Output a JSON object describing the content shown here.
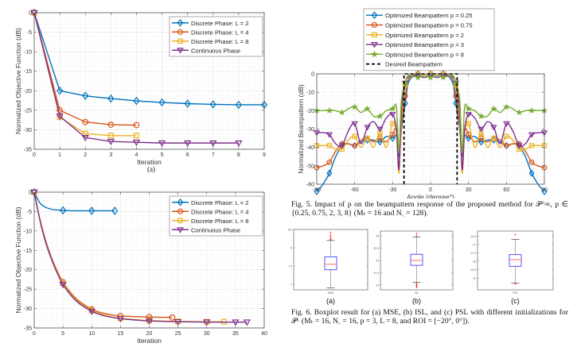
{
  "colors": {
    "blue": "#0072BD",
    "orange": "#D95319",
    "yellow": "#EDB120",
    "purple": "#7E2F8E",
    "green": "#77AC30",
    "black": "#000000",
    "box_blue": "#5555ff",
    "median_red": "#ff8080",
    "outlier_red": "#ff2020"
  },
  "chart_data": [
    {
      "id": "fig-a",
      "type": "line",
      "sublabel": "(a)",
      "title": "",
      "xlabel": "Iteration",
      "ylabel": "Normalized Objective Function (dB)",
      "xlim": [
        0,
        9
      ],
      "ylim": [
        -35,
        0
      ],
      "xticks": [
        0,
        1,
        2,
        3,
        4,
        5,
        6,
        7,
        8,
        9
      ],
      "yticks": [
        0,
        -5,
        -10,
        -15,
        -20,
        -25,
        -30,
        -35
      ],
      "grid": true,
      "legend_position": "top-right",
      "series": [
        {
          "name": "Discrete Phase: L = 2",
          "color_key": "blue",
          "marker": "diamond",
          "x": [
            0,
            1,
            2,
            3,
            4,
            5,
            6,
            7,
            8,
            9
          ],
          "y": [
            0,
            -20,
            -21.3,
            -22,
            -22.6,
            -23,
            -23.3,
            -23.5,
            -23.6,
            -23.6
          ],
          "marker_x": [
            0,
            1,
            2,
            3,
            4,
            5,
            6,
            7,
            8,
            9
          ]
        },
        {
          "name": "Discrete Phase: L = 4",
          "color_key": "orange",
          "marker": "circle",
          "x": [
            0,
            1,
            2,
            3,
            4
          ],
          "y": [
            0,
            -25,
            -28,
            -28.7,
            -28.8
          ],
          "marker_x": [
            0,
            1,
            2,
            3,
            4
          ]
        },
        {
          "name": "Discrete Phase: L = 8",
          "color_key": "yellow",
          "marker": "square",
          "x": [
            0,
            1,
            2,
            3,
            4
          ],
          "y": [
            0,
            -26.8,
            -31,
            -31.5,
            -31.5
          ],
          "marker_x": [
            0,
            1,
            2,
            3,
            4
          ]
        },
        {
          "name": "Continuous Phase",
          "color_key": "purple",
          "marker": "triangle-down",
          "x": [
            0,
            1,
            2,
            3,
            4,
            5,
            6,
            7,
            8
          ],
          "y": [
            0,
            -26.5,
            -32,
            -33,
            -33.2,
            -33.4,
            -33.4,
            -33.4,
            -33.4
          ],
          "marker_x": [
            0,
            1,
            2,
            3,
            4,
            5,
            6,
            7,
            8
          ]
        }
      ]
    },
    {
      "id": "fig-b",
      "type": "line",
      "sublabel": "",
      "title": "",
      "xlabel": "Iteration",
      "ylabel": "Normalized Objective Function (dB)",
      "xlim": [
        0,
        40
      ],
      "ylim": [
        -35,
        0
      ],
      "xticks": [
        0,
        5,
        10,
        15,
        20,
        25,
        30,
        35,
        40
      ],
      "yticks": [
        0,
        -5,
        -10,
        -15,
        -20,
        -25,
        -30,
        -35
      ],
      "grid": true,
      "legend_position": "top-right",
      "series": [
        {
          "name": "Discrete Phase: L = 2",
          "color_key": "blue",
          "marker": "diamond",
          "x": [
            0,
            1,
            2,
            3,
            4,
            5,
            7,
            10,
            14
          ],
          "y": [
            0,
            -2.8,
            -3.9,
            -4.4,
            -4.6,
            -4.7,
            -4.8,
            -4.8,
            -4.8
          ],
          "marker_x": [
            0,
            5,
            10,
            14
          ]
        },
        {
          "name": "Discrete Phase: L = 4",
          "color_key": "orange",
          "marker": "circle",
          "x": [
            0,
            1,
            2,
            3,
            4,
            5,
            6,
            7,
            8,
            10,
            12,
            15,
            18,
            20,
            24
          ],
          "y": [
            0,
            -7,
            -12.5,
            -16.8,
            -20.3,
            -23.2,
            -25.3,
            -27,
            -28.3,
            -30.2,
            -31.2,
            -31.9,
            -32.1,
            -32.2,
            -32.3
          ],
          "marker_x": [
            0,
            5,
            10,
            15,
            20,
            24
          ]
        },
        {
          "name": "Discrete Phase: L = 8",
          "color_key": "yellow",
          "marker": "square",
          "x": [
            0,
            1,
            2,
            3,
            4,
            5,
            6,
            7,
            8,
            10,
            12,
            15,
            18,
            20,
            25,
            30,
            33
          ],
          "y": [
            0,
            -7.2,
            -12.8,
            -17.1,
            -20.6,
            -23.5,
            -25.6,
            -27.3,
            -28.6,
            -30.5,
            -31.6,
            -32.5,
            -32.9,
            -33.1,
            -33.3,
            -33.4,
            -33.4
          ],
          "marker_x": [
            0,
            5,
            10,
            15,
            20,
            25,
            30,
            33
          ]
        },
        {
          "name": "Continuous Phase",
          "color_key": "purple",
          "marker": "triangle-down",
          "x": [
            0,
            1,
            2,
            3,
            4,
            5,
            6,
            7,
            8,
            10,
            12,
            15,
            18,
            20,
            25,
            30,
            35,
            37
          ],
          "y": [
            0,
            -7.3,
            -13,
            -17.3,
            -20.9,
            -23.8,
            -25.9,
            -27.6,
            -28.9,
            -30.7,
            -31.8,
            -32.6,
            -33,
            -33.2,
            -33.4,
            -33.5,
            -33.5,
            -33.5
          ],
          "marker_x": [
            0,
            5,
            10,
            15,
            20,
            25,
            30,
            35,
            37
          ]
        }
      ]
    },
    {
      "id": "fig5",
      "type": "line",
      "title": "",
      "xlabel": "Angle (degree°)",
      "ylabel": "Normalized Beampattern (dB)",
      "xlim": [
        -90,
        90
      ],
      "ylim": [
        -60,
        0
      ],
      "xticks": [
        -90,
        -60,
        -30,
        0,
        30,
        60,
        90
      ],
      "yticks": [
        0,
        -10,
        -20,
        -30,
        -40,
        -50,
        -60
      ],
      "grid": true,
      "legend_position": "top (outside)",
      "series": [
        {
          "name": "Optimized Beampattern p = 0.25",
          "color_key": "blue",
          "marker": "diamond",
          "x": [
            -90,
            -85,
            -80,
            -75,
            -70,
            -65,
            -60,
            -55,
            -50,
            -45,
            -40,
            -35,
            -30,
            -27,
            -25,
            -23,
            -20,
            -18,
            -15,
            -10,
            -5,
            0,
            5,
            10,
            15,
            18,
            20,
            23,
            25,
            27,
            30,
            35,
            40,
            45,
            50,
            55,
            60,
            65,
            70,
            75,
            80,
            85,
            90
          ],
          "y": [
            -64,
            -60,
            -54,
            -45,
            -39,
            -38,
            -39,
            -37,
            -36,
            -36,
            -37,
            -34,
            -35,
            -34,
            -45,
            -30,
            -16,
            -6,
            -2,
            0,
            -1,
            0,
            -1,
            0,
            -2,
            -6,
            -16,
            -30,
            -45,
            -34,
            -35,
            -34,
            -37,
            -36,
            -36,
            -37,
            -39,
            -38,
            -39,
            -45,
            -54,
            -60,
            -64
          ],
          "marker_x": [
            -90,
            -80,
            -70,
            -60,
            -50,
            -40,
            -30,
            -20,
            -10,
            0,
            10,
            20,
            30,
            40,
            50,
            60,
            70,
            80,
            90
          ]
        },
        {
          "name": "Optimized Beampattern p = 0.75",
          "color_key": "orange",
          "marker": "circle",
          "x": [
            -90,
            -85,
            -80,
            -75,
            -70,
            -65,
            -60,
            -55,
            -50,
            -45,
            -40,
            -35,
            -30,
            -27,
            -25,
            -23,
            -20,
            -18,
            -15,
            -10,
            -5,
            0,
            5,
            10,
            15,
            18,
            20,
            23,
            25,
            27,
            30,
            35,
            40,
            45,
            50,
            55,
            60,
            65,
            70,
            75,
            80,
            85,
            90
          ],
          "y": [
            -51,
            -50,
            -48,
            -42,
            -38,
            -38,
            -39,
            -36,
            -35,
            -37,
            -35,
            -37,
            -33,
            -30,
            -50,
            -28,
            -12,
            -4,
            -1,
            0,
            -1,
            0,
            -1,
            0,
            -1,
            -4,
            -12,
            -28,
            -50,
            -30,
            -33,
            -37,
            -35,
            -37,
            -35,
            -36,
            -39,
            -38,
            -38,
            -42,
            -48,
            -50,
            -51
          ],
          "marker_x": [
            -90,
            -80,
            -70,
            -60,
            -50,
            -40,
            -30,
            -20,
            -10,
            0,
            10,
            20,
            30,
            40,
            50,
            60,
            70,
            80,
            90
          ]
        },
        {
          "name": "Optimized Beampattern p = 2",
          "color_key": "yellow",
          "marker": "square",
          "x": [
            -90,
            -85,
            -80,
            -75,
            -70,
            -65,
            -60,
            -55,
            -50,
            -45,
            -40,
            -35,
            -30,
            -27,
            -25,
            -23,
            -20,
            -18,
            -15,
            -10,
            -5,
            0,
            5,
            10,
            15,
            18,
            20,
            23,
            25,
            27,
            30,
            35,
            40,
            45,
            50,
            55,
            60,
            65,
            70,
            75,
            80,
            85,
            90
          ],
          "y": [
            -39,
            -39,
            -39,
            -41,
            -41,
            -36,
            -34,
            -40,
            -35,
            -40,
            -32,
            -40,
            -27,
            -32,
            -54,
            -24,
            -6,
            -2,
            -1,
            0,
            -1,
            0,
            -1,
            0,
            -1,
            -2,
            -6,
            -24,
            -54,
            -32,
            -27,
            -40,
            -32,
            -40,
            -35,
            -40,
            -34,
            -36,
            -41,
            -41,
            -39,
            -39,
            -39
          ],
          "marker_x": [
            -90,
            -80,
            -70,
            -60,
            -50,
            -40,
            -30,
            -20,
            -10,
            0,
            10,
            20,
            30,
            40,
            50,
            60,
            70,
            80,
            90
          ]
        },
        {
          "name": "Optimized Beampattern p = 3",
          "color_key": "purple",
          "marker": "triangle-down",
          "x": [
            -90,
            -85,
            -80,
            -75,
            -70,
            -65,
            -60,
            -55,
            -50,
            -45,
            -40,
            -35,
            -30,
            -27,
            -25,
            -23,
            -20,
            -18,
            -15,
            -10,
            -5,
            0,
            5,
            10,
            15,
            18,
            20,
            23,
            25,
            27,
            30,
            35,
            40,
            45,
            50,
            55,
            60,
            65,
            70,
            75,
            80,
            85,
            90
          ],
          "y": [
            -32,
            -32,
            -33,
            -38,
            -39,
            -31,
            -27,
            -38,
            -29,
            -26,
            -30,
            -24,
            -22,
            -30,
            -52,
            -20,
            -5,
            -2,
            -1,
            -1,
            -2,
            -1,
            -2,
            -1,
            -1,
            -2,
            -5,
            -20,
            -52,
            -30,
            -22,
            -24,
            -30,
            -26,
            -29,
            -38,
            -27,
            -31,
            -39,
            -38,
            -33,
            -32,
            -32
          ],
          "marker_x": [
            -90,
            -80,
            -70,
            -60,
            -50,
            -40,
            -30,
            -20,
            -10,
            0,
            10,
            20,
            30,
            40,
            50,
            60,
            70,
            80,
            90
          ]
        },
        {
          "name": "Optimized Beampattern p = 8",
          "color_key": "green",
          "marker": "star",
          "x": [
            -90,
            -85,
            -80,
            -75,
            -70,
            -65,
            -60,
            -55,
            -50,
            -45,
            -40,
            -35,
            -30,
            -27,
            -25,
            -23,
            -20,
            -18,
            -15,
            -10,
            -5,
            0,
            5,
            10,
            15,
            18,
            20,
            23,
            25,
            27,
            30,
            35,
            40,
            45,
            50,
            55,
            60,
            65,
            70,
            75,
            80,
            85,
            90
          ],
          "y": [
            -20,
            -20,
            -20,
            -20,
            -21,
            -19,
            -18,
            -21,
            -19,
            -23,
            -23,
            -20,
            -19,
            -18,
            -42,
            -14,
            -5,
            -1,
            -1,
            -2,
            -1,
            -2,
            -1,
            -2,
            -1,
            -1,
            -5,
            -14,
            -42,
            -18,
            -19,
            -20,
            -23,
            -23,
            -19,
            -21,
            -18,
            -19,
            -21,
            -20,
            -20,
            -20,
            -20
          ],
          "marker_x": [
            -90,
            -80,
            -70,
            -60,
            -50,
            -40,
            -30,
            -20,
            -10,
            0,
            10,
            20,
            30,
            40,
            50,
            60,
            70,
            80,
            90
          ]
        },
        {
          "name": "Desired Beampattern",
          "color_key": "black",
          "marker": "none",
          "dashed": true,
          "x": [
            -21,
            -21,
            21,
            21
          ],
          "y": [
            -60,
            0,
            0,
            -60
          ],
          "marker_x": []
        }
      ]
    },
    {
      "id": "fig6",
      "type": "boxplot",
      "panels": [
        {
          "sublabel": "(a)",
          "xlabel": "MSE",
          "ylim": [
            6.85,
            8.5
          ],
          "yticks": [
            7,
            7.5,
            8,
            8.5
          ],
          "min": 6.9,
          "q1": 7.4,
          "median": 7.55,
          "q3": 7.75,
          "max": 8.2,
          "outliers": [
            8.22,
            8.25,
            8.3,
            8.35,
            8.42
          ]
        },
        {
          "sublabel": "(b)",
          "xlabel": "ISL",
          "ylim": [
            23.8,
            26.2
          ],
          "yticks": [
            24,
            24.5,
            25,
            25.5,
            26
          ],
          "min": 24.1,
          "q1": 24.8,
          "median": 25.0,
          "q3": 25.25,
          "max": 25.95,
          "outliers": [
            24.0,
            23.95,
            23.9,
            24.05,
            26.0,
            26.1
          ]
        },
        {
          "sublabel": "(c)",
          "xlabel": "PSL",
          "ylim": [
            -19.7,
            -16.2
          ],
          "yticks": [
            -16.5,
            -17,
            -17.5,
            -18,
            -18.5,
            -19
          ],
          "min": -19.3,
          "q1": -18.3,
          "median": -17.9,
          "q3": -17.6,
          "max": -16.7,
          "outliers": [
            -16.4,
            -19.35
          ]
        }
      ]
    }
  ],
  "captions": {
    "fig5": "Fig. 5.  Impact of p on the beampattern response of the proposed method for 𝒫^∞, p ∈ {0.25, 0.75, 2, 3, 8} (Mₜ = 16 and N꜀ = 128).",
    "fig6": "Fig. 6.  Boxplot result for (a) MSE, (b) ISL, and (c) PSL with different initializations for 𝒫ᴸ (Mₜ = 16, N꜀ = 16, p = 3, L = 8, and ROI = [−20°, 0°])."
  }
}
